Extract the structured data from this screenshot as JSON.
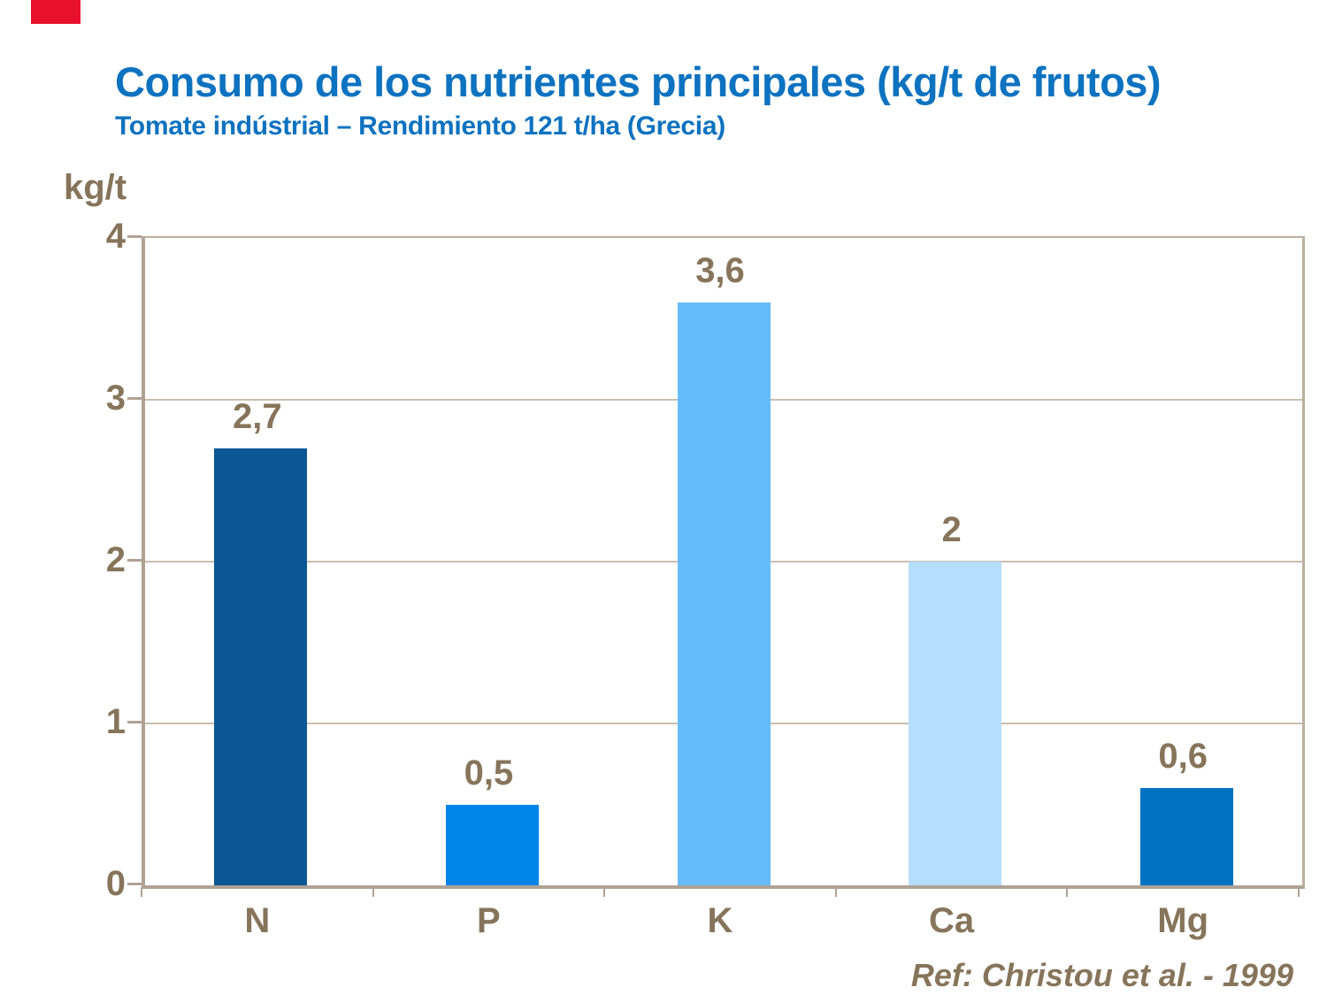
{
  "header": {
    "title": "Consumo de los nutrientes principales (kg/t de frutos)",
    "subtitle": "Tomate indústrial – Rendimiento 121 t/ha (Grecia)"
  },
  "chart_data": {
    "type": "bar",
    "categories": [
      "N",
      "P",
      "K",
      "Ca",
      "Mg"
    ],
    "values": [
      2.7,
      0.5,
      3.6,
      2,
      0.6
    ],
    "value_labels": [
      "2,7",
      "0,5",
      "3,6",
      "2",
      "0,6"
    ],
    "bar_colors": [
      "#0B5796",
      "#0084E8",
      "#66BCFA",
      "#B5DDFC",
      "#0072C2"
    ],
    "title": "Consumo de los nutrientes principales (kg/t de frutos)",
    "xlabel": "",
    "ylabel": "kg/t",
    "ylim": [
      0,
      4
    ],
    "yticks": [
      "0",
      "1",
      "2",
      "3",
      "4"
    ],
    "grid": "horizontal gridlines at 1, 2, 3",
    "legend": "none"
  },
  "footer": {
    "reference": "Ref: Christou et al. - 1999"
  },
  "colors": {
    "title_blue": "#0D72C0",
    "label_brown": "#86755B",
    "axis_line": "#AFA294",
    "grid_line": "#C9BEAF",
    "logo_red": "#E8112D",
    "background": "#FFFFFF"
  }
}
